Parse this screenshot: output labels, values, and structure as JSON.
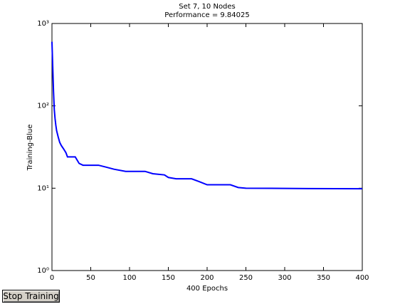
{
  "chart_data": {
    "type": "line",
    "title": "Set 7, 10 Nodes",
    "subtitle": "Performance = 9.84025",
    "x_label": "400 Epochs",
    "y_label": "Training-Blue",
    "log_y": true,
    "xlim": [
      0,
      400
    ],
    "xticks": [
      0,
      50,
      100,
      150,
      200,
      250,
      300,
      350,
      400
    ],
    "ylim": [
      1,
      1000
    ],
    "yticks": [
      {
        "value": 1,
        "label": "10⁰"
      },
      {
        "value": 10,
        "label": "10¹"
      },
      {
        "value": 100,
        "label": "10²"
      },
      {
        "value": 1000,
        "label": "10³"
      }
    ],
    "series": [
      {
        "name": "Training",
        "color": "#0000ff",
        "x": [
          0,
          1,
          2,
          3,
          4,
          5,
          6,
          8,
          10,
          12,
          15,
          18,
          20,
          30,
          35,
          40,
          60,
          70,
          80,
          95,
          120,
          130,
          145,
          150,
          160,
          180,
          190,
          200,
          230,
          240,
          250,
          330,
          400
        ],
        "values": [
          600,
          300,
          150,
          90,
          70,
          58,
          50,
          42,
          36,
          33,
          30,
          27,
          24,
          24,
          20,
          19,
          19,
          18,
          17,
          16,
          16,
          15,
          14.5,
          13.5,
          13,
          13,
          12,
          11,
          11,
          10.2,
          10,
          9.9,
          9.84
        ]
      }
    ]
  },
  "button": {
    "label": "Stop Training"
  }
}
